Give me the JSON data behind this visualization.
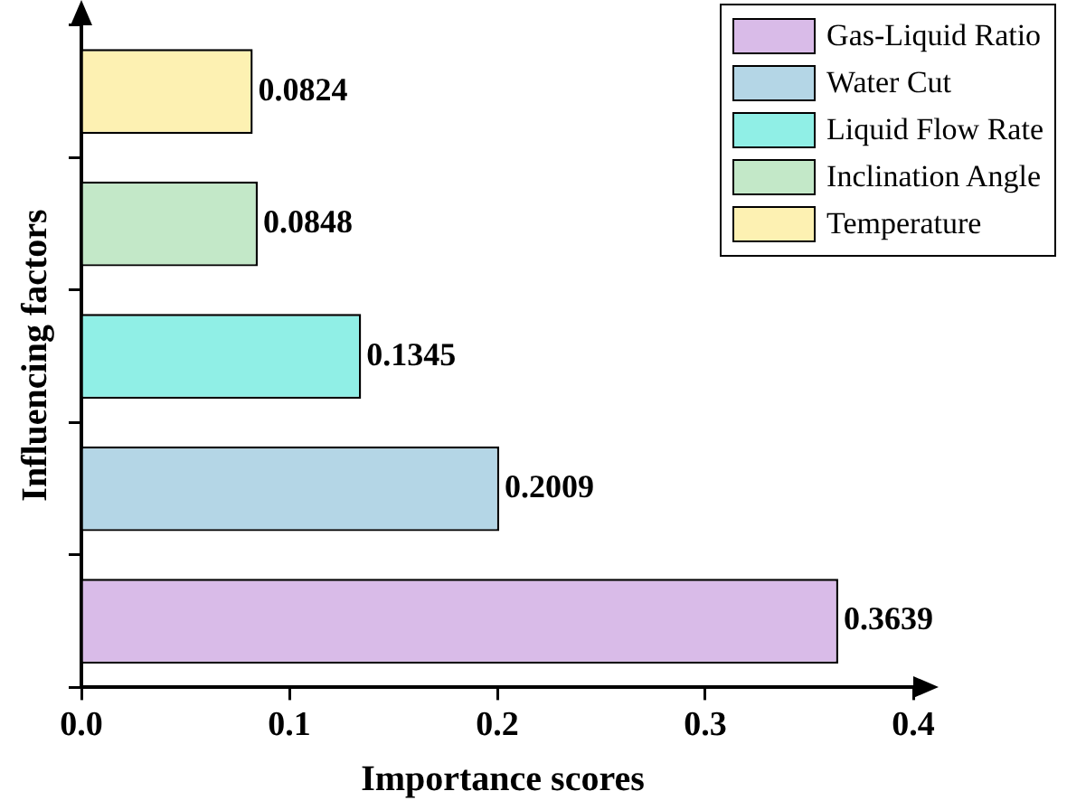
{
  "chart_data": {
    "type": "bar",
    "orientation": "horizontal",
    "stacked": true,
    "xlabel": "Importance scores",
    "ylabel": "Influencing factors",
    "categories": [
      null,
      null,
      null,
      null,
      null
    ],
    "series": [
      {
        "name": "Gas-Liquid Ratio",
        "color": "#d9bbe8",
        "values": [
          null,
          null,
          null,
          null,
          0.3639
        ]
      },
      {
        "name": "Water Cut",
        "color": "#b4d6e6",
        "values": [
          null,
          null,
          null,
          0.2009,
          null
        ]
      },
      {
        "name": "Liquid Flow Rate",
        "color": "#90efe6",
        "values": [
          null,
          null,
          0.1345,
          null,
          null
        ]
      },
      {
        "name": "Inclination Angle",
        "color": "#c3e8c8",
        "values": [
          null,
          0.0848,
          null,
          null,
          null
        ]
      },
      {
        "name": "Temperature",
        "color": "#fdf1b2",
        "values": [
          0.0824,
          null,
          null,
          null,
          null
        ]
      }
    ],
    "xlim": [
      0,
      0.4
    ],
    "xticks": [
      {
        "value": 0,
        "label": "0.0"
      },
      0.1,
      0.2,
      0.3,
      0.4
    ],
    "tick_labels": "x",
    "grid": false,
    "legend": "top right",
    "data_labels": true
  }
}
